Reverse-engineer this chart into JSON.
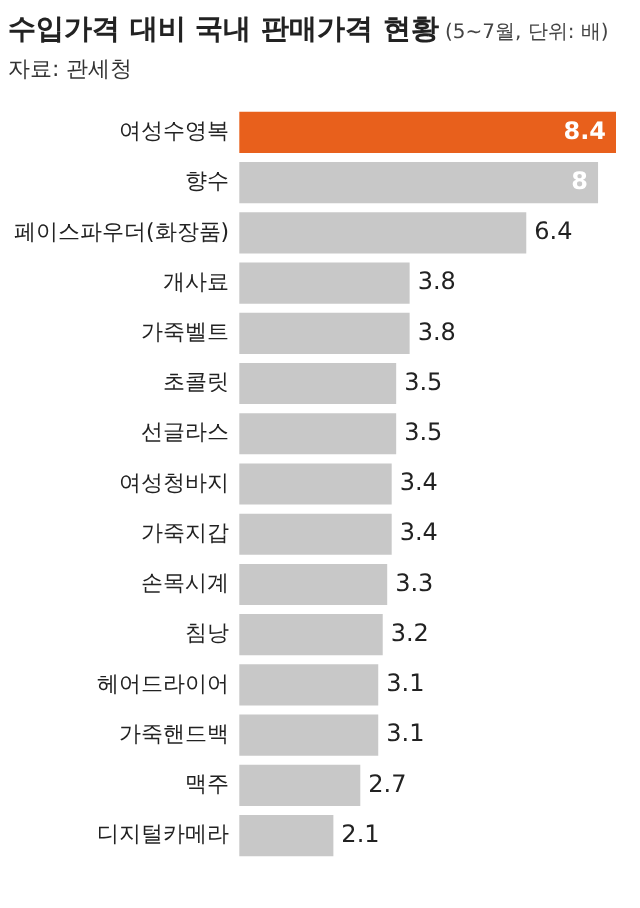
{
  "chart_data": {
    "type": "bar",
    "orientation": "horizontal",
    "title": "수입가격 대비 국내 판매가격 현황",
    "subtitle": "(5~7월, 단위: 배)",
    "annotations": [
      "자료: 관세청"
    ],
    "categories": [
      "여성수영복",
      "향수",
      "페이스파우더(화장품)",
      "개사료",
      "가죽벨트",
      "초콜릿",
      "선글라스",
      "여성청바지",
      "가죽지갑",
      "손목시계",
      "침낭",
      "헤어드라이어",
      "가죽핸드백",
      "맥주",
      "디지털카메라"
    ],
    "values": [
      8.4,
      8,
      6.4,
      3.8,
      3.8,
      3.5,
      3.5,
      3.4,
      3.4,
      3.3,
      3.2,
      3.1,
      3.1,
      2.7,
      2.1
    ],
    "colors": [
      "#e8601c",
      "#c8c8c8",
      "#c8c8c8",
      "#c8c8c8",
      "#c8c8c8",
      "#c8c8c8",
      "#c8c8c8",
      "#c8c8c8",
      "#c8c8c8",
      "#c8c8c8",
      "#c8c8c8",
      "#c8c8c8",
      "#c8c8c8",
      "#c8c8c8",
      "#c8c8c8"
    ],
    "data_labels": true,
    "grid": false,
    "legend": false
  }
}
